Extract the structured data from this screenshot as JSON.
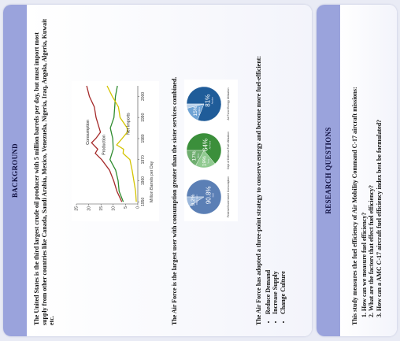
{
  "background": {
    "header": "BACKGROUND",
    "para1": "The United States is the third largest crude oil producer with 5 million barrels per day, but must import most supply from other countries like Canada, Saudi Arabia, Mexico, Venezuela, Nigeria, Iraq, Angola, Algeria, Kuwait etc.",
    "para2": "The Air Force is the largest user with consumption greater than the sister services combined.",
    "para3": "The Air Force has adopted a three-point strategy to conserve energy and become more fuel-efficient:",
    "bullets": [
      "Reduce Demand",
      "Increase Supply",
      "Change Culture"
    ]
  },
  "research": {
    "header": "RESEARCH QUESTIONS",
    "intro": "This study measures the fuel efficiency of Air Mobility Command C-17 aircraft missions:",
    "questions": [
      "How can we measure fuel efficiency?",
      "What are the factors that effect fuel efficiency?",
      "How can a AMC C-17 aircraft fuel efficiency index best be formulated?"
    ]
  },
  "chart_data": [
    {
      "type": "line",
      "ylabel": "Million Barrels per Day",
      "x_ticks": [
        "1950",
        "1960",
        "1970",
        "1980",
        "1990",
        "2000"
      ],
      "y_ticks": [
        "0",
        "5",
        "10",
        "15",
        "20",
        "25"
      ],
      "xlim": [
        1949,
        2005
      ],
      "ylim": [
        0,
        25
      ],
      "series": [
        {
          "name": "Consumption",
          "color": "#a52a2a",
          "x": [
            1950,
            1955,
            1960,
            1965,
            1970,
            1973,
            1975,
            1978,
            1980,
            1983,
            1985,
            1990,
            1995,
            2000,
            2005
          ],
          "y": [
            6.5,
            8.5,
            9.8,
            11.5,
            14.7,
            17.3,
            16.3,
            18.8,
            17.1,
            15.2,
            15.7,
            17.0,
            17.7,
            19.7,
            20.8
          ]
        },
        {
          "name": "Production",
          "color": "#2e8b2e",
          "x": [
            1950,
            1955,
            1960,
            1965,
            1970,
            1975,
            1980,
            1985,
            1990,
            1995,
            2000,
            2005
          ],
          "y": [
            5.9,
            7.6,
            8.0,
            9.0,
            11.3,
            10.0,
            10.2,
            11.2,
            9.7,
            9.4,
            9.1,
            8.3
          ]
        },
        {
          "name": "Net Imports",
          "color": "#d4c400",
          "x": [
            1950,
            1955,
            1960,
            1965,
            1970,
            1973,
            1975,
            1977,
            1980,
            1983,
            1985,
            1990,
            1995,
            2000,
            2005
          ],
          "y": [
            0.6,
            0.9,
            1.6,
            2.3,
            3.2,
            6.0,
            5.8,
            8.6,
            6.4,
            4.3,
            4.3,
            7.2,
            7.9,
            10.4,
            12.5
          ]
        }
      ]
    },
    {
      "type": "pie",
      "captions": [
        "Federal Government Consumption",
        "Dept of Defense Fuel Utilization",
        "Air Force Energy Utilization"
      ],
      "pies": [
        {
          "values": [
            90.8,
            9.2
          ],
          "labels": [
            "90.8%",
            "9.2%"
          ],
          "sublabels": [
            "DoD",
            "Other Govt"
          ],
          "colors": [
            "#5b7fb5",
            "#9bb7db"
          ]
        },
        {
          "values": [
            64,
            19,
            17
          ],
          "labels": [
            "64%",
            "19%",
            "17%"
          ],
          "sublabels": [
            "Air Force",
            "Navy",
            "Army"
          ],
          "colors": [
            "#3b8f3b",
            "#8fca8f",
            "#6fae6f"
          ]
        },
        {
          "values": [
            81,
            15,
            4
          ],
          "labels": [
            "81%",
            "15%",
            ""
          ],
          "sublabels": [
            "Aviation",
            "Facilities",
            ""
          ],
          "colors": [
            "#1f5c99",
            "#6fa3d4",
            "#b8d0ea"
          ]
        }
      ]
    }
  ]
}
